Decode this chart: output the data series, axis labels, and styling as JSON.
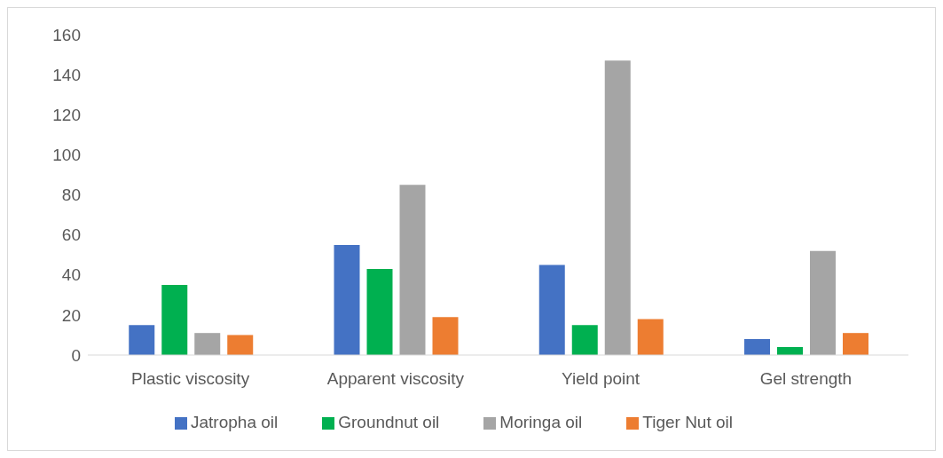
{
  "chart_data": {
    "type": "bar",
    "categories": [
      "Plastic viscosity",
      "Apparent viscosity",
      "Yield point",
      "Gel strength"
    ],
    "series": [
      {
        "name": "Jatropha oil",
        "color": "#4472c4",
        "values": [
          15,
          55,
          45,
          8
        ]
      },
      {
        "name": "Groundnut oil",
        "color": "#00b050",
        "values": [
          35,
          43,
          15,
          4
        ]
      },
      {
        "name": "Moringa oil",
        "color": "#a5a5a5",
        "values": [
          11,
          85,
          147,
          52
        ]
      },
      {
        "name": "Tiger Nut oil",
        "color": "#ed7d31",
        "values": [
          10,
          19,
          18,
          11
        ]
      }
    ],
    "ylim": [
      0,
      160
    ],
    "yticks": [
      0,
      20,
      40,
      60,
      80,
      100,
      120,
      140,
      160
    ],
    "grid": false,
    "legend": "bottom"
  }
}
